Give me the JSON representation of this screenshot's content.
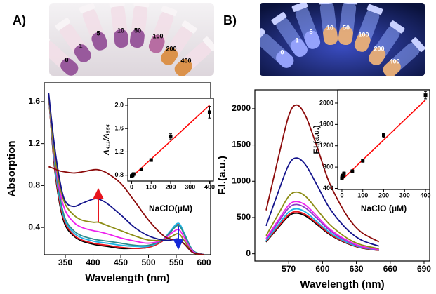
{
  "chart_data": [
    {
      "type": "line",
      "panel": "A)",
      "photo_labels": [
        "0",
        "1",
        "5",
        "10",
        "50",
        "100",
        "200",
        "400"
      ],
      "xlabel": "Wavelength (nm)",
      "ylabel": "Absorption",
      "x": [
        320,
        330,
        340,
        350,
        365,
        380,
        400,
        410,
        425,
        450,
        475,
        500,
        525,
        540,
        554,
        565,
        580,
        600
      ],
      "xlim": [
        312,
        612
      ],
      "xticks": [
        350,
        400,
        450,
        500,
        550,
        600
      ],
      "ylim": [
        0.14,
        1.78
      ],
      "yticks": [
        0.4,
        0.8,
        1.2,
        1.6
      ],
      "series": [
        {
          "color": "#000000",
          "values": [
            1.65,
            1.0,
            0.62,
            0.42,
            0.32,
            0.27,
            0.24,
            0.23,
            0.22,
            0.2,
            0.2,
            0.21,
            0.27,
            0.36,
            0.43,
            0.33,
            0.17,
            0.14
          ]
        },
        {
          "color": "#e8141e",
          "values": [
            1.65,
            1.02,
            0.64,
            0.44,
            0.33,
            0.28,
            0.25,
            0.24,
            0.23,
            0.21,
            0.2,
            0.21,
            0.27,
            0.36,
            0.43,
            0.33,
            0.17,
            0.14
          ]
        },
        {
          "color": "#1fb4e6",
          "values": [
            1.66,
            1.05,
            0.67,
            0.46,
            0.35,
            0.3,
            0.27,
            0.26,
            0.25,
            0.23,
            0.22,
            0.22,
            0.28,
            0.37,
            0.44,
            0.34,
            0.18,
            0.14
          ]
        },
        {
          "color": "#2a8c8c",
          "values": [
            1.66,
            1.08,
            0.7,
            0.48,
            0.37,
            0.32,
            0.29,
            0.28,
            0.27,
            0.25,
            0.23,
            0.23,
            0.28,
            0.36,
            0.42,
            0.33,
            0.18,
            0.14
          ]
        },
        {
          "color": "#ee22ee",
          "values": [
            1.67,
            1.1,
            0.75,
            0.56,
            0.45,
            0.4,
            0.37,
            0.36,
            0.34,
            0.3,
            0.27,
            0.25,
            0.28,
            0.34,
            0.38,
            0.3,
            0.17,
            0.14
          ]
        },
        {
          "color": "#8c8c14",
          "values": [
            1.67,
            1.12,
            0.8,
            0.62,
            0.52,
            0.47,
            0.45,
            0.45,
            0.42,
            0.37,
            0.32,
            0.28,
            0.28,
            0.31,
            0.34,
            0.27,
            0.16,
            0.14
          ]
        },
        {
          "color": "#14148c",
          "values": [
            1.68,
            1.2,
            0.85,
            0.65,
            0.6,
            0.63,
            0.67,
            0.67,
            0.63,
            0.52,
            0.4,
            0.32,
            0.28,
            0.28,
            0.29,
            0.24,
            0.16,
            0.14
          ]
        },
        {
          "color": "#8c0a0a",
          "values": [
            0.98,
            0.96,
            0.94,
            0.93,
            0.92,
            0.93,
            0.95,
            0.95,
            0.92,
            0.82,
            0.65,
            0.47,
            0.33,
            0.29,
            0.28,
            0.24,
            0.16,
            0.14
          ]
        }
      ]
    },
    {
      "type": "scatter",
      "xlabel": "NaClO(μM)",
      "ylabel": "A₄₁₁/A₅₅₄",
      "x": [
        0,
        1,
        5,
        10,
        50,
        100,
        200,
        400
      ],
      "y": [
        0.78,
        0.79,
        0.8,
        0.82,
        0.9,
        1.06,
        1.46,
        1.88
      ],
      "errors": [
        0.02,
        0.02,
        0.02,
        0.02,
        0.02,
        0.02,
        0.05,
        0.1
      ],
      "fit": {
        "color": "#ff0000",
        "x": [
          0,
          400
        ],
        "y": [
          0.77,
          2.0
        ]
      },
      "xlim": [
        -20,
        420
      ],
      "xticks": [
        0,
        100,
        200,
        300,
        400
      ],
      "ylim": [
        0.7,
        2.12
      ],
      "yticks": [
        0.8,
        1.2,
        1.6,
        {
          "value": 2.0,
          "label": "2.0"
        }
      ]
    },
    {
      "type": "line",
      "panel": "B)",
      "photo_labels": [
        "0",
        "1",
        "5",
        "10",
        "50",
        "100",
        "200",
        "400"
      ],
      "xlabel": "Wavelength (nm)",
      "ylabel": "F.I.(a.u.)",
      "x": [
        550,
        560,
        570,
        577,
        585,
        595,
        605,
        615,
        625,
        635,
        650
      ],
      "xlim": [
        540,
        695
      ],
      "xticks": [
        570,
        600,
        630,
        660,
        690
      ],
      "ylim": [
        -100,
        2260
      ],
      "yticks": [
        0,
        500,
        1000,
        1500,
        2000
      ],
      "series": [
        {
          "color": "#000000",
          "values": [
            162,
            347,
            520,
            560,
            520,
            405,
            280,
            190,
            123,
            78,
            45
          ]
        },
        {
          "color": "#e8141e",
          "values": [
            170,
            360,
            540,
            580,
            540,
            420,
            290,
            195,
            128,
            81,
            46
          ]
        },
        {
          "color": "#1fb4e6",
          "values": [
            180,
            385,
            575,
            620,
            575,
            445,
            310,
            210,
            135,
            87,
            50
          ]
        },
        {
          "color": "#8a3cc8",
          "values": [
            200,
            420,
            630,
            680,
            630,
            490,
            340,
            230,
            150,
            95,
            55
          ]
        },
        {
          "color": "#ee22ee",
          "values": [
            210,
            445,
            670,
            720,
            670,
            520,
            360,
            245,
            160,
            100,
            60
          ]
        },
        {
          "color": "#8c8c14",
          "values": [
            250,
            525,
            790,
            850,
            790,
            610,
            425,
            290,
            185,
            120,
            70
          ]
        },
        {
          "color": "#14148c",
          "values": [
            385,
            820,
            1225,
            1320,
            1225,
            950,
            660,
            450,
            290,
            185,
            105
          ]
        },
        {
          "color": "#8c0a0a",
          "values": [
            600,
            1270,
            1900,
            2050,
            1900,
            1480,
            1020,
            700,
            450,
            290,
            165
          ]
        }
      ]
    },
    {
      "type": "scatter",
      "xlabel": "NaClO (μM)",
      "ylabel": "F.I.(a.u.)",
      "x": [
        0,
        1,
        5,
        10,
        50,
        100,
        200,
        400
      ],
      "y": [
        590,
        620,
        640,
        680,
        720,
        920,
        1400,
        2150
      ],
      "errors": [
        30,
        30,
        30,
        30,
        30,
        30,
        40,
        70
      ],
      "fit": {
        "color": "#ff0000",
        "x": [
          0,
          400
        ],
        "y": [
          560,
          2060
        ]
      },
      "xlim": [
        -20,
        420
      ],
      "xticks": [
        0,
        100,
        200,
        300,
        400
      ],
      "ylim": [
        380,
        2250
      ],
      "yticks": [
        400,
        800,
        1200,
        1600,
        2000
      ]
    }
  ]
}
